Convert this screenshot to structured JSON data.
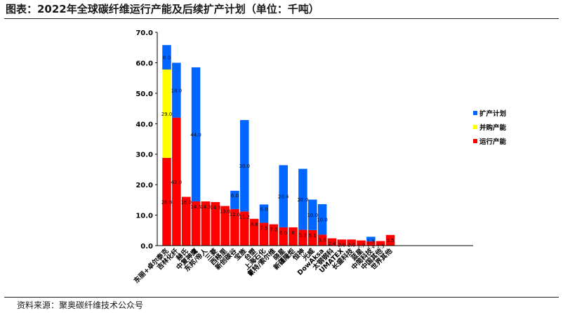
{
  "header": {
    "title": "图表：2022年全球碳纤维运行产能及后续扩产计划（单位：千吨）"
  },
  "footer": {
    "source": "资料来源：聚奥碳纤维技术公众号"
  },
  "colors": {
    "running": "#ff0000",
    "merged": "#ffff00",
    "expansion": "#0066ff",
    "axis": "#000000"
  },
  "chart_data": {
    "type": "bar",
    "stacked": true,
    "title": "",
    "xlabel": "",
    "ylabel": "",
    "ylim": [
      0,
      70
    ],
    "yticks": [
      "0.0",
      "10.0",
      "20.0",
      "30.0",
      "40.0",
      "50.0",
      "60.0",
      "70.0"
    ],
    "grid": false,
    "legend_position": "right",
    "categories": [
      "东丽+卓尔泰克",
      "吉林化纤",
      "赫氏",
      "中复神鹰",
      "东邦/帝人",
      "三菱",
      "西格里",
      "新创碳谷",
      "宝旌",
      "台塑",
      "上海石化",
      "氰特/索尔维",
      "晓星",
      "新疆隆炬",
      "恒神",
      "光威",
      "DowAksa",
      "太钢钢科",
      "UMATEX",
      "长盛科技",
      "蓝星",
      "中简科技",
      "中国其他",
      "世界其他"
    ],
    "series": [
      {
        "name": "运行产能",
        "color": "#ff0000",
        "values": [
          28.8,
          42.0,
          16.0,
          14.5,
          14.5,
          14.3,
          13.0,
          12.0,
          11.2,
          8.8,
          7.5,
          7.0,
          6.0,
          6.0,
          5.2,
          5.1,
          3.6,
          2.4,
          2.0,
          2.0,
          1.7,
          1.4,
          1.5,
          3.5
        ],
        "labels": [
          "28.8",
          "42.0",
          "16.0",
          "14.5",
          "14.5",
          "14.3",
          "13.0",
          "12.0",
          "11.2",
          "8.8",
          "7.5",
          "7.0",
          "6.0",
          "6",
          "5.2",
          "5.1",
          "3.6",
          "2.4",
          "2.0",
          "2.0",
          "1.7",
          "1.4",
          "1.5",
          "3.5"
        ]
      },
      {
        "name": "并购产能",
        "color": "#ffff00",
        "values": [
          29.0,
          0,
          0,
          0,
          0,
          0,
          0,
          0,
          0,
          0,
          0,
          0,
          0,
          0,
          0,
          0,
          0,
          0,
          0,
          0,
          0,
          0,
          0,
          0
        ],
        "labels": [
          "29.0",
          "",
          "",
          "",
          "",
          "",
          "",
          "",
          "",
          "",
          "",
          "",
          "",
          "",
          "",
          "",
          "",
          "",
          "",
          "",
          "",
          "",
          "",
          ""
        ]
      },
      {
        "name": "扩产计划",
        "color": "#0066ff",
        "values": [
          8.0,
          18.0,
          0,
          44.0,
          0,
          0,
          0,
          6.0,
          30.0,
          0,
          6.0,
          0,
          20.4,
          0,
          20.0,
          10.0,
          10.0,
          0,
          0,
          0,
          0,
          1.5,
          0,
          0
        ],
        "labels": [
          "8.0",
          "18.0",
          "",
          "44.0",
          "",
          "",
          "",
          "6.0",
          "30.0",
          "",
          "6.0",
          "",
          "20.4",
          "",
          "20.0",
          "10.0",
          "10.0",
          "",
          "",
          "",
          "",
          "1.5",
          "",
          ""
        ]
      }
    ]
  }
}
